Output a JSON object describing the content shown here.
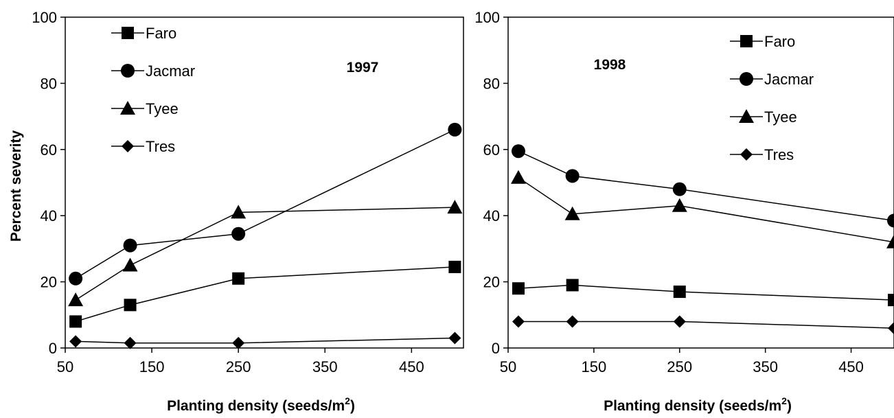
{
  "chart_data": [
    {
      "type": "line",
      "annotation": "1997",
      "xlabel": "Planting density (seeds/m",
      "xlabel_sup": "2",
      "xlabel_end": ")",
      "ylabel": "Percent severity",
      "xlim": [
        50,
        510
      ],
      "ylim": [
        0,
        100
      ],
      "xticks": [
        50,
        150,
        250,
        350,
        450
      ],
      "yticks": [
        0,
        20,
        40,
        60,
        80,
        100
      ],
      "legend_position": "top-left",
      "grid": false,
      "x": [
        62,
        125,
        250,
        500
      ],
      "series": [
        {
          "name": "Faro",
          "marker": "square",
          "values": [
            8,
            13,
            21,
            24.5
          ]
        },
        {
          "name": "Jacmar",
          "marker": "circle",
          "values": [
            21,
            31,
            34.5,
            66
          ]
        },
        {
          "name": "Tyee",
          "marker": "triangle",
          "values": [
            14.5,
            25,
            41,
            42.5
          ]
        },
        {
          "name": "Tres",
          "marker": "diamond",
          "values": [
            2,
            1.5,
            1.5,
            3
          ]
        }
      ]
    },
    {
      "type": "line",
      "annotation": "1998",
      "xlabel": "Planting density (seeds/m",
      "xlabel_sup": "2",
      "xlabel_end": ")",
      "ylabel": "",
      "xlim": [
        50,
        500
      ],
      "ylim": [
        0,
        100
      ],
      "xticks": [
        50,
        150,
        250,
        350,
        450
      ],
      "yticks": [
        0,
        20,
        40,
        60,
        80,
        100
      ],
      "legend_position": "top-right",
      "grid": false,
      "x": [
        62,
        125,
        250,
        500
      ],
      "series": [
        {
          "name": "Faro",
          "marker": "square",
          "values": [
            18,
            19,
            17,
            14.5
          ]
        },
        {
          "name": "Jacmar",
          "marker": "circle",
          "values": [
            59.5,
            52,
            48,
            38.5
          ]
        },
        {
          "name": "Tyee",
          "marker": "triangle",
          "values": [
            51.5,
            40.5,
            43,
            32
          ]
        },
        {
          "name": "Tres",
          "marker": "diamond",
          "values": [
            8,
            8,
            8,
            6
          ]
        }
      ]
    }
  ]
}
